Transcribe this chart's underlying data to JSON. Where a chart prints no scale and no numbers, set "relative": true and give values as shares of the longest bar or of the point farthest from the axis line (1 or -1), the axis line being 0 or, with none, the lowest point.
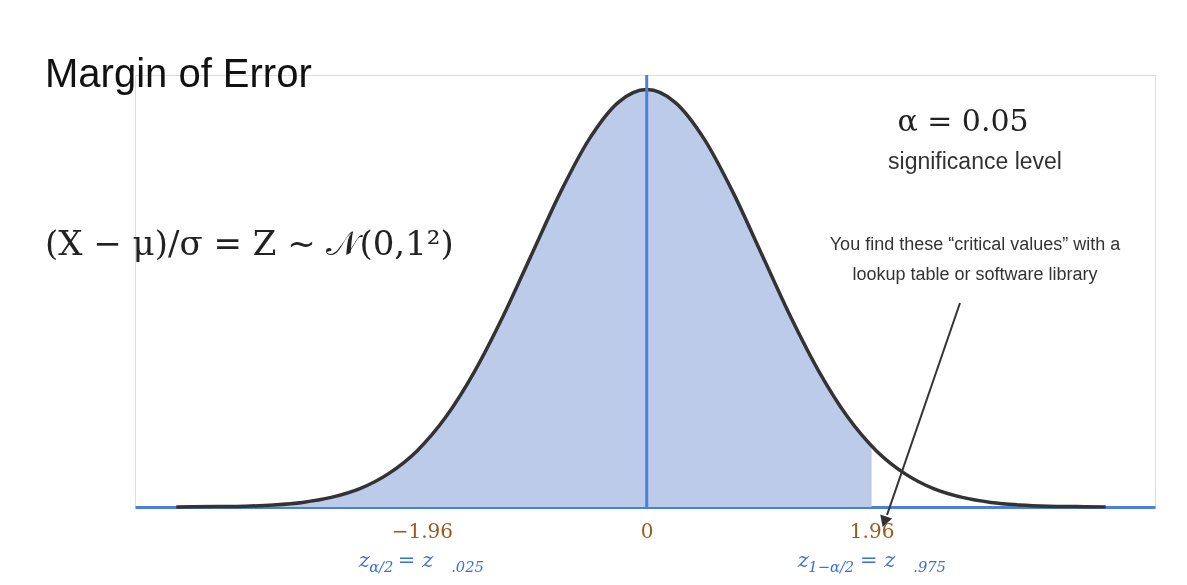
{
  "chart_data": {
    "type": "line",
    "title": "Margin of Error",
    "relative": true,
    "grid": false,
    "marker": "none",
    "line_style": "solid",
    "xlim": [
      -4.46,
      4.43
    ],
    "xticks": [
      {
        "value": -1.96,
        "label": "−1.96"
      },
      0,
      1.96
    ],
    "series": [
      {
        "type": "area",
        "color": "#bccbea",
        "x": [
          -4.1,
          -3.75,
          -3.5,
          -3.25,
          -3,
          -2.75,
          -2.5,
          -2.25,
          -2,
          -1.75,
          -1.5,
          -1.25,
          -1,
          -0.75,
          -0.5,
          -0.25,
          0,
          0.25,
          0.5,
          0.75,
          1,
          1.25,
          1.5,
          1.75,
          1.96
        ],
        "values": [
          0.0002,
          0.001,
          0.002,
          0.005,
          0.011,
          0.023,
          0.044,
          0.08,
          0.135,
          0.216,
          0.325,
          0.458,
          0.607,
          0.755,
          0.882,
          0.969,
          1,
          0.969,
          0.882,
          0.755,
          0.607,
          0.458,
          0.325,
          0.216,
          0.146
        ]
      },
      {
        "color": "#333333",
        "x": [
          -4.1,
          -3.75,
          -3.5,
          -3.25,
          -3,
          -2.75,
          -2.5,
          -2.25,
          -2,
          -1.75,
          -1.5,
          -1.25,
          -1,
          -0.75,
          -0.5,
          -0.25,
          0,
          0.25,
          0.5,
          0.75,
          1,
          1.25,
          1.5,
          1.75,
          2,
          2.25,
          2.5,
          2.75,
          3,
          3.25,
          3.5,
          3.75,
          4.0
        ],
        "values": [
          0.0002,
          0.001,
          0.002,
          0.005,
          0.011,
          0.023,
          0.044,
          0.08,
          0.135,
          0.216,
          0.325,
          0.458,
          0.607,
          0.755,
          0.882,
          0.969,
          1,
          0.969,
          0.882,
          0.755,
          0.607,
          0.458,
          0.325,
          0.216,
          0.135,
          0.08,
          0.044,
          0.023,
          0.011,
          0.005,
          0.002,
          0.001,
          0.0003
        ]
      }
    ],
    "ref_lines": [
      {
        "axis": "x",
        "value": 0,
        "color": "#4a7fdc"
      }
    ],
    "annotations": [
      "(X − μ)/σ = Z ~ 𝒩(0,1²)",
      "α = 0.05",
      "significance level",
      "You find these “critical values” with a",
      "lookup table or software library",
      "z$_{α/2}$ = z$_{.025}$",
      "z$_{1−α/2}$ = z$_{.975}$"
    ]
  }
}
